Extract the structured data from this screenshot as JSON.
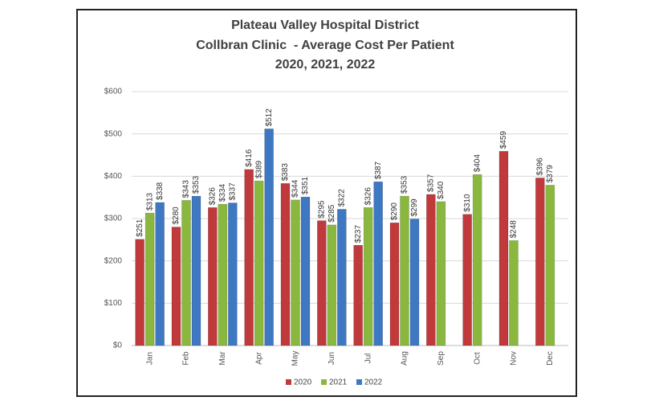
{
  "chart_data": {
    "type": "bar",
    "title": [
      "Plateau Valley Hospital District",
      "Collbran Clinic  - Average Cost Per Patient",
      "2020, 2021, 2022"
    ],
    "categories": [
      "Jan",
      "Feb",
      "Mar",
      "Apr",
      "May",
      "Jun",
      "Jul",
      "Aug",
      "Sep",
      "Oct",
      "Nov",
      "Dec"
    ],
    "series": [
      {
        "name": "2020",
        "color": "#c0393b",
        "values": [
          251,
          280,
          326,
          416,
          383,
          295,
          237,
          290,
          357,
          310,
          459,
          396
        ],
        "value_labels": [
          "$251",
          "$280",
          "$326",
          "$416",
          "$383",
          "$295",
          "$237",
          "$290",
          "$357",
          "$310",
          "$459",
          "$396"
        ]
      },
      {
        "name": "2021",
        "color": "#8ab83f",
        "values": [
          313,
          343,
          334,
          389,
          344,
          285,
          326,
          353,
          340,
          404,
          248,
          379
        ],
        "value_labels": [
          "$313",
          "$343",
          "$334",
          "$389",
          "$344",
          "$285",
          "$326",
          "$353",
          "$340",
          "$404",
          "$248",
          "$379"
        ]
      },
      {
        "name": "2022",
        "color": "#3f78c2",
        "values": [
          338,
          353,
          337,
          512,
          351,
          322,
          387,
          299,
          null,
          null,
          null,
          null
        ],
        "value_labels": [
          "$338",
          "$353",
          "$337",
          "$512",
          "$351",
          "$322",
          "$387",
          "$299",
          null,
          null,
          null,
          null
        ]
      }
    ],
    "ylim": [
      0,
      600
    ],
    "yticks": [
      {
        "value": 0,
        "label": "$0"
      },
      {
        "value": 100,
        "label": "$100"
      },
      {
        "value": 200,
        "label": "$200"
      },
      {
        "value": 300,
        "label": "$300"
      },
      {
        "value": 400,
        "label": "$400"
      },
      {
        "value": 500,
        "label": "$500"
      },
      {
        "value": 600,
        "label": "$600"
      }
    ],
    "grid": true,
    "legend": "bottom"
  }
}
